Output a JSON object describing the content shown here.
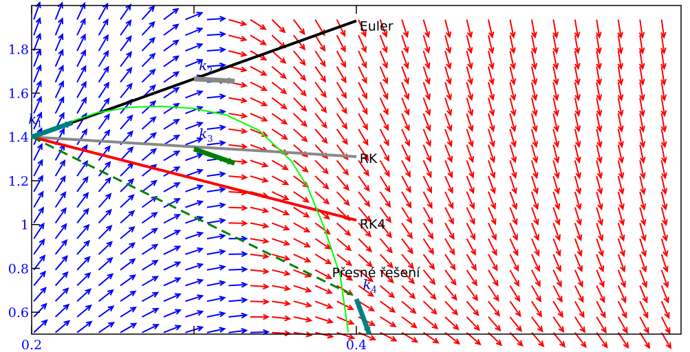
{
  "chart_data": {
    "type": "line",
    "xlim": [
      0.2,
      0.6
    ],
    "ylim": [
      0.5,
      2.0
    ],
    "x_ticks": [
      {
        "value": 0.2,
        "label": "0.2"
      },
      {
        "value": 0.3,
        "label": ""
      },
      {
        "value": 0.4,
        "label": "0.4"
      }
    ],
    "y_ticks": [
      {
        "value": 0.6,
        "label": "0.6"
      },
      {
        "value": 0.8,
        "label": "0.8"
      },
      {
        "value": 1.0,
        "label": "1"
      },
      {
        "value": 1.2,
        "label": "1.2"
      },
      {
        "value": 1.4,
        "label": "1.4"
      },
      {
        "value": 1.6,
        "label": "1.6"
      },
      {
        "value": 1.8,
        "label": "1.8"
      }
    ],
    "x0": 0.2,
    "y0": 1.4,
    "step": 0.2,
    "tick_label_color": "#0000ff",
    "direction_field": {
      "x_samples": 30,
      "y_samples": 21,
      "color_up": "#0000ff",
      "color_down": "#ff0000"
    },
    "series": [
      {
        "name": "Euler",
        "color": "#000000",
        "style": "solid",
        "x": [
          0.2,
          0.4
        ],
        "y": [
          1.4,
          1.93
        ]
      },
      {
        "name": "RK",
        "color": "#888888",
        "style": "solid",
        "x": [
          0.2,
          0.4
        ],
        "y": [
          1.4,
          1.31
        ]
      },
      {
        "name": "RK4",
        "color": "#ff0000",
        "style": "solid",
        "x": [
          0.2,
          0.4
        ],
        "y": [
          1.4,
          1.02
        ]
      },
      {
        "name": "",
        "color": "#008000",
        "style": "dashed",
        "x": [
          0.2,
          0.4
        ],
        "y": [
          1.4,
          0.67
        ]
      },
      {
        "name": "Přesné řešení",
        "color": "#00ff00",
        "style": "solid",
        "x": [
          0.2,
          0.22,
          0.24,
          0.26,
          0.28,
          0.3,
          0.32,
          0.34,
          0.36,
          0.37,
          0.38,
          0.39,
          0.395
        ],
        "y": [
          1.4,
          1.46,
          1.51,
          1.535,
          1.54,
          1.53,
          1.5,
          1.43,
          1.29,
          1.17,
          0.99,
          0.77,
          0.51
        ]
      }
    ],
    "slope_segments": [
      {
        "name": "k1",
        "label": "k",
        "sub": "1",
        "color": "#008080",
        "x": [
          0.2,
          0.225
        ],
        "y": [
          1.4,
          1.465
        ]
      },
      {
        "name": "k2",
        "label": "k",
        "sub": "2",
        "color": "#888888",
        "x": [
          0.3,
          0.325
        ],
        "y": [
          1.665,
          1.655
        ]
      },
      {
        "name": "k3",
        "label": "k",
        "sub": "3",
        "color": "#008000",
        "x": [
          0.3,
          0.325
        ],
        "y": [
          1.345,
          1.28
        ]
      },
      {
        "name": "k4",
        "label": "k",
        "sub": "4",
        "color": "#008080",
        "x": [
          0.4,
          0.408
        ],
        "y": [
          0.66,
          0.5
        ]
      }
    ],
    "annotations": [
      {
        "text": "Euler",
        "x": 0.402,
        "y": 1.905
      },
      {
        "text": "RK",
        "x": 0.402,
        "y": 1.3
      },
      {
        "text": "RK4",
        "x": 0.402,
        "y": 1.0
      },
      {
        "text": "Přesné řešení",
        "x": 0.385,
        "y": 0.78
      }
    ],
    "k_label_positions": [
      {
        "sub": "1",
        "x": 0.198,
        "y": 1.46
      },
      {
        "sub": "2",
        "x": 0.303,
        "y": 1.705
      },
      {
        "sub": "3",
        "x": 0.303,
        "y": 1.395
      },
      {
        "sub": "4",
        "x": 0.404,
        "y": 0.705
      }
    ]
  }
}
